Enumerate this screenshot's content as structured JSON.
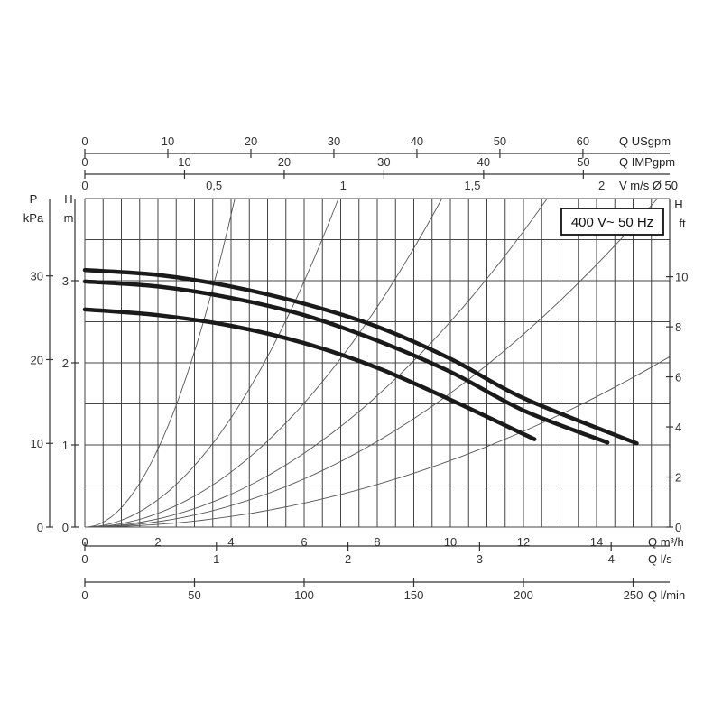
{
  "chart_data": {
    "type": "line",
    "voltage_label": "400 V~ 50 Hz",
    "xlim": [
      0,
      16
    ],
    "ylim": [
      0,
      4
    ],
    "top_axes": [
      {
        "label": "Q USgpm",
        "factor": 4.4029,
        "ticks": [
          0,
          10,
          20,
          30,
          40,
          50,
          60
        ]
      },
      {
        "label": "Q IMPgpm",
        "factor": 3.6662,
        "ticks": [
          0,
          10,
          20,
          30,
          40,
          50
        ]
      },
      {
        "label": "V m/s Ø 50",
        "factor": 0.14147,
        "ticks": [
          0,
          0.5,
          1,
          1.5,
          2
        ],
        "tick_labels": [
          "0",
          "0,5",
          "1",
          "1,5",
          "2"
        ]
      }
    ],
    "bottom_axes": [
      {
        "label": "Q m³/h",
        "factor": 1,
        "ticks": [
          0,
          2,
          4,
          6,
          8,
          10,
          12,
          14
        ]
      },
      {
        "label": "Q l/s",
        "factor": 0.27778,
        "ticks": [
          0,
          1,
          2,
          3,
          4
        ]
      },
      {
        "label": "Q l/min",
        "factor": 16.6667,
        "ticks": [
          0,
          50,
          100,
          150,
          200,
          250
        ]
      }
    ],
    "left_axes": [
      {
        "label_top": "P",
        "label_bottom": "kPa",
        "factor": 9.81,
        "ticks": [
          0,
          10,
          20,
          30
        ]
      },
      {
        "label_top": "H",
        "label_bottom": "m",
        "factor": 1,
        "ticks": [
          0,
          1,
          2,
          3
        ]
      }
    ],
    "right_axis": {
      "label_top": "H",
      "label_bottom": "ft",
      "factor": 3.2808,
      "ticks": [
        0,
        2,
        4,
        6,
        8,
        10
      ]
    },
    "series": [
      {
        "x": [
          0,
          2,
          4,
          6,
          8,
          10,
          12,
          15.1
        ],
        "y": [
          3.13,
          3.07,
          2.93,
          2.72,
          2.44,
          2.05,
          1.57,
          1.02
        ]
      },
      {
        "x": [
          0,
          2,
          4,
          6,
          8,
          10,
          12,
          14.3
        ],
        "y": [
          2.99,
          2.93,
          2.79,
          2.58,
          2.27,
          1.89,
          1.42,
          1.03
        ]
      },
      {
        "x": [
          0,
          2,
          4,
          6,
          8,
          10,
          12.3
        ],
        "y": [
          2.65,
          2.58,
          2.45,
          2.24,
          1.94,
          1.55,
          1.07
        ]
      }
    ],
    "system_curves": [
      {
        "k": 0.2375
      },
      {
        "k": 0.0831
      },
      {
        "k": 0.0419
      },
      {
        "k": 0.025
      },
      {
        "k": 0.0163
      },
      {
        "k": 0.0081
      }
    ]
  }
}
